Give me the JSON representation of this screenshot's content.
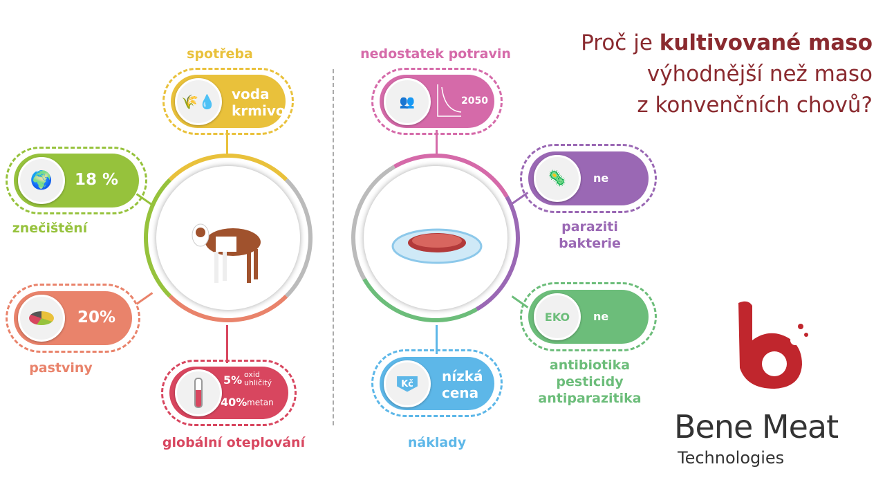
{
  "title": {
    "line1_pre": "Proč je ",
    "line1_bold": "kultivované maso",
    "line2": "výhodnější než maso",
    "line3": "z konvenčních chovů?"
  },
  "left": {
    "consumption": {
      "label": "spotřeba",
      "text1": "voda",
      "text2": "krmivo",
      "icon": "hay-water-drop-icon",
      "color": "#e9c13b"
    },
    "pollution": {
      "label": "znečištění",
      "value": "18 %",
      "icon": "polluted-earth-icon",
      "color": "#96c23c"
    },
    "pasture": {
      "label": "pastviny",
      "value": "20%",
      "icon": "pie-chart-icon",
      "color": "#e9836b"
    },
    "warming": {
      "label": "globální oteplování",
      "v1": "5%",
      "t1": "oxid uhličitý",
      "v2": "40%",
      "t2": "metan",
      "icon": "thermometer-icon",
      "color": "#d8465f"
    },
    "center_icon": "cow-icon"
  },
  "right": {
    "food": {
      "label": "nedostatek potravin",
      "value": "2050",
      "icon": "people-decline-chart-icon",
      "color": "#d56aa9"
    },
    "parasites": {
      "label1": "paraziti",
      "label2": "bakterie",
      "value": "ne",
      "icon": "microbes-icon",
      "color": "#9a68b4"
    },
    "antibiotics": {
      "label1": "antibiotika",
      "label2": "pesticidy",
      "label3": "antiparazitika",
      "badge": "EKO",
      "value": "ne",
      "color": "#6cbd7a"
    },
    "costs": {
      "label": "náklady",
      "text1": "nízká",
      "text2": "cena",
      "badge": "Kč",
      "icon": "currency-down-arrow-icon",
      "color": "#5db7e8"
    },
    "center_icon": "petri-dish-meat-icon"
  },
  "logo": {
    "brand": "Bene Meat",
    "sub": "Technologies",
    "color": "#c0262d"
  }
}
